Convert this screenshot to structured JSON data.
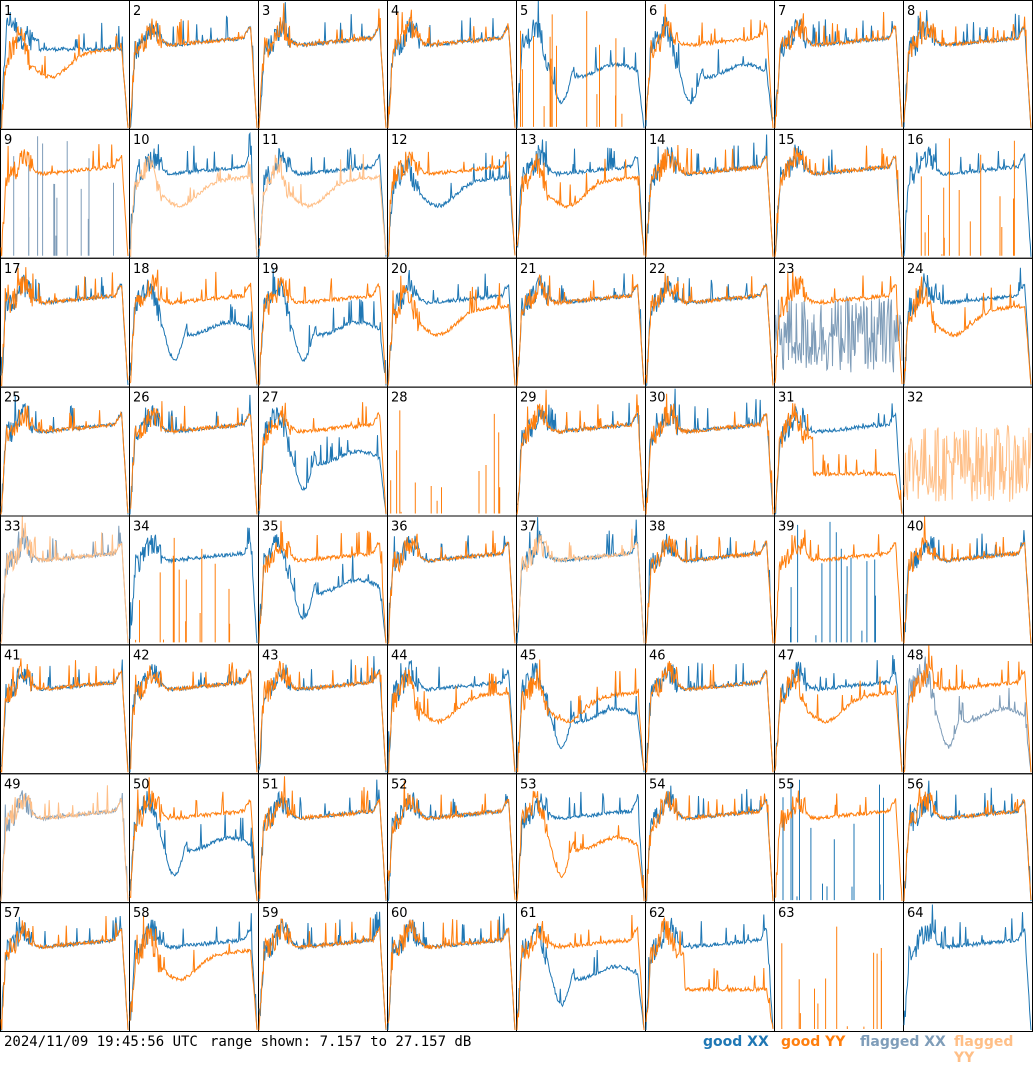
{
  "footer": {
    "timestamp": "2024/11/09 19:45:56 UTC",
    "range_text": "range shown: 7.157 to 27.157 dB"
  },
  "legend": [
    {
      "key": "good_xx",
      "label": "good XX",
      "color": "#1f77b4"
    },
    {
      "key": "good_yy",
      "label": "good YY",
      "color": "#ff7f0e"
    },
    {
      "key": "flagged_xx",
      "label": "flagged XX",
      "color": "#7f9db9"
    },
    {
      "key": "flagged_yy",
      "label": "flagged YY",
      "color": "#ffbf87"
    }
  ],
  "chart_data": {
    "type": "line",
    "ylim": [
      7.157,
      27.157
    ],
    "grid": false,
    "legend_placement": "bottom-right",
    "panels": [
      {
        "label": "1",
        "xx": "good",
        "yy": "good",
        "xx_shape": "strong",
        "yy_shape": "sag"
      },
      {
        "label": "2",
        "xx": "good",
        "yy": "good",
        "xx_shape": "normal",
        "yy_shape": "normal"
      },
      {
        "label": "3",
        "xx": "good",
        "yy": "good",
        "xx_shape": "normal",
        "yy_shape": "normal"
      },
      {
        "label": "4",
        "xx": "good",
        "yy": "good",
        "xx_shape": "normal",
        "yy_shape": "normal"
      },
      {
        "label": "5",
        "xx": "good",
        "yy": "good",
        "xx_shape": "dip",
        "yy_shape": "sparse"
      },
      {
        "label": "6",
        "xx": "good",
        "yy": "good",
        "xx_shape": "dip",
        "yy_shape": "normal"
      },
      {
        "label": "7",
        "xx": "good",
        "yy": "good",
        "xx_shape": "normal",
        "yy_shape": "normal"
      },
      {
        "label": "8",
        "xx": "good",
        "yy": "good",
        "xx_shape": "normal",
        "yy_shape": "normal"
      },
      {
        "label": "9",
        "xx": "flagged",
        "yy": "good",
        "xx_shape": "sparse",
        "yy_shape": "normal"
      },
      {
        "label": "10",
        "xx": "good",
        "yy": "flagged",
        "xx_shape": "normal",
        "yy_shape": "sag"
      },
      {
        "label": "11",
        "xx": "good",
        "yy": "flagged",
        "xx_shape": "normal",
        "yy_shape": "sag"
      },
      {
        "label": "12",
        "xx": "good",
        "yy": "good",
        "xx_shape": "sag",
        "yy_shape": "normal"
      },
      {
        "label": "13",
        "xx": "good",
        "yy": "good",
        "xx_shape": "normal",
        "yy_shape": "sag"
      },
      {
        "label": "14",
        "xx": "good",
        "yy": "good",
        "xx_shape": "normal",
        "yy_shape": "normal"
      },
      {
        "label": "15",
        "xx": "good",
        "yy": "good",
        "xx_shape": "normal",
        "yy_shape": "normal"
      },
      {
        "label": "16",
        "xx": "good",
        "yy": "good",
        "xx_shape": "normal",
        "yy_shape": "sparse"
      },
      {
        "label": "17",
        "xx": "good",
        "yy": "good",
        "xx_shape": "normal",
        "yy_shape": "normal"
      },
      {
        "label": "18",
        "xx": "good",
        "yy": "good",
        "xx_shape": "dip",
        "yy_shape": "normal"
      },
      {
        "label": "19",
        "xx": "good",
        "yy": "good",
        "xx_shape": "dip",
        "yy_shape": "normal"
      },
      {
        "label": "20",
        "xx": "good",
        "yy": "good",
        "xx_shape": "normal",
        "yy_shape": "sag"
      },
      {
        "label": "21",
        "xx": "good",
        "yy": "good",
        "xx_shape": "normal",
        "yy_shape": "normal"
      },
      {
        "label": "22",
        "xx": "good",
        "yy": "good",
        "xx_shape": "normal",
        "yy_shape": "normal"
      },
      {
        "label": "23",
        "xx": "flagged",
        "yy": "good",
        "xx_shape": "noise",
        "yy_shape": "normal"
      },
      {
        "label": "24",
        "xx": "good",
        "yy": "good",
        "xx_shape": "normal",
        "yy_shape": "sag"
      },
      {
        "label": "25",
        "xx": "good",
        "yy": "good",
        "xx_shape": "normal",
        "yy_shape": "normal"
      },
      {
        "label": "26",
        "xx": "good",
        "yy": "good",
        "xx_shape": "normal",
        "yy_shape": "normal"
      },
      {
        "label": "27",
        "xx": "good",
        "yy": "good",
        "xx_shape": "dip",
        "yy_shape": "normal"
      },
      {
        "label": "28",
        "xx": "good",
        "yy": "good",
        "xx_shape": "none",
        "yy_shape": "sparse"
      },
      {
        "label": "29",
        "xx": "good",
        "yy": "good",
        "xx_shape": "normal",
        "yy_shape": "normal"
      },
      {
        "label": "30",
        "xx": "good",
        "yy": "good",
        "xx_shape": "normal",
        "yy_shape": "normal"
      },
      {
        "label": "31",
        "xx": "good",
        "yy": "good",
        "xx_shape": "normal",
        "yy_shape": "low"
      },
      {
        "label": "32",
        "xx": "good",
        "yy": "flagged",
        "xx_shape": "none",
        "yy_shape": "noise"
      },
      {
        "label": "33",
        "xx": "flagged",
        "yy": "flagged",
        "xx_shape": "normal",
        "yy_shape": "normal"
      },
      {
        "label": "34",
        "xx": "good",
        "yy": "good",
        "xx_shape": "normal",
        "yy_shape": "sparse"
      },
      {
        "label": "35",
        "xx": "good",
        "yy": "good",
        "xx_shape": "dip",
        "yy_shape": "normal"
      },
      {
        "label": "36",
        "xx": "good",
        "yy": "good",
        "xx_shape": "normal",
        "yy_shape": "normal"
      },
      {
        "label": "37",
        "xx": "good",
        "yy": "flagged",
        "xx_shape": "normal",
        "yy_shape": "normal"
      },
      {
        "label": "38",
        "xx": "good",
        "yy": "good",
        "xx_shape": "normal",
        "yy_shape": "normal"
      },
      {
        "label": "39",
        "xx": "good",
        "yy": "good",
        "xx_shape": "sparse",
        "yy_shape": "normal"
      },
      {
        "label": "40",
        "xx": "good",
        "yy": "good",
        "xx_shape": "normal",
        "yy_shape": "normal"
      },
      {
        "label": "41",
        "xx": "good",
        "yy": "good",
        "xx_shape": "normal",
        "yy_shape": "normal"
      },
      {
        "label": "42",
        "xx": "good",
        "yy": "good",
        "xx_shape": "normal",
        "yy_shape": "normal"
      },
      {
        "label": "43",
        "xx": "good",
        "yy": "good",
        "xx_shape": "normal",
        "yy_shape": "normal"
      },
      {
        "label": "44",
        "xx": "good",
        "yy": "good",
        "xx_shape": "normal",
        "yy_shape": "sag"
      },
      {
        "label": "45",
        "xx": "good",
        "yy": "good",
        "xx_shape": "dip",
        "yy_shape": "sag"
      },
      {
        "label": "46",
        "xx": "good",
        "yy": "good",
        "xx_shape": "normal",
        "yy_shape": "normal"
      },
      {
        "label": "47",
        "xx": "good",
        "yy": "good",
        "xx_shape": "normal",
        "yy_shape": "sag"
      },
      {
        "label": "48",
        "xx": "flagged",
        "yy": "good",
        "xx_shape": "dip",
        "yy_shape": "normal"
      },
      {
        "label": "49",
        "xx": "flagged",
        "yy": "flagged",
        "xx_shape": "normal",
        "yy_shape": "normal"
      },
      {
        "label": "50",
        "xx": "good",
        "yy": "good",
        "xx_shape": "dip",
        "yy_shape": "normal"
      },
      {
        "label": "51",
        "xx": "good",
        "yy": "good",
        "xx_shape": "normal",
        "yy_shape": "normal"
      },
      {
        "label": "52",
        "xx": "good",
        "yy": "good",
        "xx_shape": "normal",
        "yy_shape": "normal"
      },
      {
        "label": "53",
        "xx": "good",
        "yy": "good",
        "xx_shape": "normal",
        "yy_shape": "dip"
      },
      {
        "label": "54",
        "xx": "good",
        "yy": "good",
        "xx_shape": "normal",
        "yy_shape": "normal"
      },
      {
        "label": "55",
        "xx": "good",
        "yy": "good",
        "xx_shape": "sparse",
        "yy_shape": "normal"
      },
      {
        "label": "56",
        "xx": "good",
        "yy": "good",
        "xx_shape": "normal",
        "yy_shape": "normal"
      },
      {
        "label": "57",
        "xx": "good",
        "yy": "good",
        "xx_shape": "normal",
        "yy_shape": "normal"
      },
      {
        "label": "58",
        "xx": "good",
        "yy": "good",
        "xx_shape": "normal",
        "yy_shape": "sag"
      },
      {
        "label": "59",
        "xx": "good",
        "yy": "good",
        "xx_shape": "normal",
        "yy_shape": "normal"
      },
      {
        "label": "60",
        "xx": "good",
        "yy": "good",
        "xx_shape": "normal",
        "yy_shape": "normal"
      },
      {
        "label": "61",
        "xx": "good",
        "yy": "good",
        "xx_shape": "dip",
        "yy_shape": "normal"
      },
      {
        "label": "62",
        "xx": "good",
        "yy": "good",
        "xx_shape": "normal",
        "yy_shape": "low"
      },
      {
        "label": "63",
        "xx": "good",
        "yy": "good",
        "xx_shape": "none",
        "yy_shape": "sparse"
      },
      {
        "label": "64",
        "xx": "good",
        "yy": "good",
        "xx_shape": "normal",
        "yy_shape": "none"
      }
    ]
  }
}
